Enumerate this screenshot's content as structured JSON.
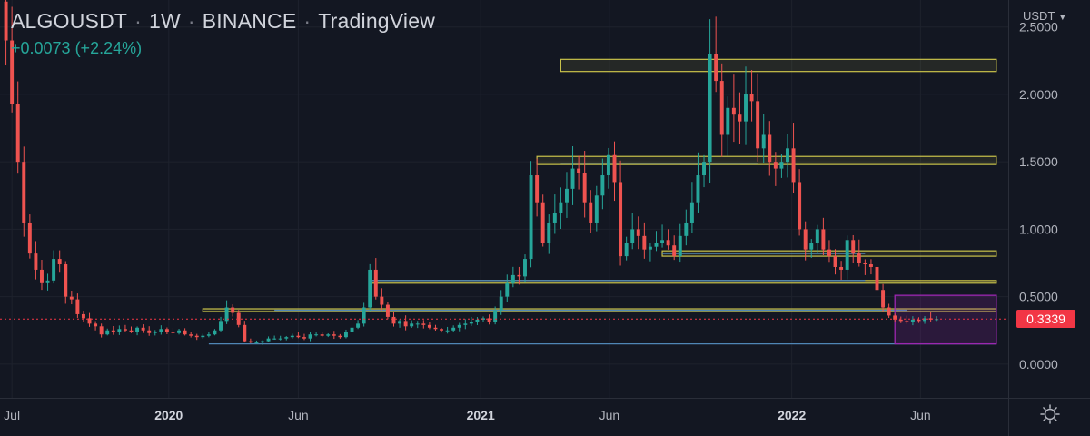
{
  "header": {
    "symbol": "ALGOUSDT",
    "interval": "1W",
    "exchange": "BINANCE",
    "source": "TradingView",
    "separator": "·",
    "change": "+0.0073 (+2.24%)"
  },
  "currency_selector": {
    "label": "USDT",
    "icon": "chevron-down-icon"
  },
  "last_price": {
    "label": "0.3339",
    "value": 0.3339,
    "color": "#f23645"
  },
  "settings": {
    "icon": "gear-icon"
  },
  "colors": {
    "background": "#131722",
    "grid": "#1e222d",
    "up": "#26a69a",
    "down": "#ef5350",
    "axis_text": "#b2b5be",
    "resistance_zone": "#c9c24a",
    "support_line": "#4f86b5",
    "range_box": "#9c27b0"
  },
  "chart_data": {
    "type": "candlestick",
    "title": "ALGOUSDT · 1W · BINANCE",
    "x_ticks": [
      {
        "label": "Jul",
        "date": "2019-07-01",
        "bold": false
      },
      {
        "label": "2020",
        "date": "2020-01-01",
        "bold": true
      },
      {
        "label": "Jun",
        "date": "2020-06-01",
        "bold": false
      },
      {
        "label": "2021",
        "date": "2021-01-01",
        "bold": true
      },
      {
        "label": "Jun",
        "date": "2021-06-01",
        "bold": false
      },
      {
        "label": "2022",
        "date": "2022-01-01",
        "bold": true
      },
      {
        "label": "Jun",
        "date": "2022-06-01",
        "bold": false
      }
    ],
    "y_ticks": [
      "0.0000",
      "0.5000",
      "1.0000",
      "1.5000",
      "2.0000",
      "2.5000"
    ],
    "ylim": [
      -0.25,
      2.7
    ],
    "x_range": [
      "2019-06-17",
      "2022-09-12"
    ],
    "grid": true,
    "last_price": 0.3339,
    "first_candle": "2019-06-24",
    "weekly_closes": [
      2.4,
      1.93,
      1.5,
      1.05,
      0.82,
      0.7,
      0.6,
      0.62,
      0.78,
      0.74,
      0.5,
      0.48,
      0.37,
      0.34,
      0.3,
      0.28,
      0.22,
      0.25,
      0.24,
      0.26,
      0.25,
      0.24,
      0.27,
      0.25,
      0.23,
      0.24,
      0.26,
      0.24,
      0.23,
      0.25,
      0.22,
      0.21,
      0.2,
      0.21,
      0.22,
      0.25,
      0.32,
      0.42,
      0.38,
      0.29,
      0.17,
      0.16,
      0.16,
      0.17,
      0.19,
      0.19,
      0.19,
      0.2,
      0.21,
      0.2,
      0.19,
      0.22,
      0.22,
      0.21,
      0.22,
      0.21,
      0.2,
      0.24,
      0.27,
      0.3,
      0.42,
      0.7,
      0.5,
      0.44,
      0.35,
      0.3,
      0.32,
      0.28,
      0.3,
      0.3,
      0.29,
      0.27,
      0.26,
      0.25,
      0.25,
      0.27,
      0.29,
      0.3,
      0.31,
      0.33,
      0.34,
      0.31,
      0.4,
      0.5,
      0.6,
      0.66,
      0.65,
      0.78,
      1.4,
      1.2,
      0.9,
      1.05,
      1.12,
      1.2,
      1.3,
      1.45,
      1.42,
      1.2,
      1.05,
      1.25,
      1.4,
      1.55,
      1.35,
      0.8,
      0.9,
      1.0,
      0.95,
      0.85,
      0.87,
      0.9,
      0.92,
      0.88,
      0.8,
      0.95,
      1.05,
      1.2,
      1.4,
      1.5,
      2.3,
      2.1,
      1.7,
      1.9,
      1.85,
      1.8,
      2.0,
      1.95,
      1.6,
      1.7,
      1.5,
      1.45,
      1.5,
      1.6,
      1.35,
      1.0,
      0.85,
      0.9,
      1.0,
      0.85,
      0.8,
      0.72,
      0.7,
      0.92,
      0.82,
      0.75,
      0.74,
      0.72,
      0.55,
      0.42,
      0.36,
      0.33,
      0.32,
      0.31,
      0.33,
      0.32,
      0.34,
      0.33,
      0.3339
    ],
    "resistance_zones": [
      {
        "from": "2021-04-05",
        "to": "2022-08-29",
        "low": 2.17,
        "high": 2.26
      },
      {
        "from": "2021-03-08",
        "to": "2022-08-29",
        "low": 1.48,
        "high": 1.54
      },
      {
        "from": "2021-08-02",
        "to": "2022-08-29",
        "low": 0.8,
        "high": 0.84
      },
      {
        "from": "2020-08-24",
        "to": "2022-08-29",
        "low": 0.6,
        "high": 0.62
      },
      {
        "from": "2020-02-10",
        "to": "2022-08-29",
        "low": 0.39,
        "high": 0.41
      }
    ],
    "support_lines": [
      {
        "from": "2021-04-05",
        "to": "2021-11-22",
        "value": 1.49
      },
      {
        "from": "2021-08-02",
        "to": "2022-03-28",
        "value": 0.82
      },
      {
        "from": "2020-08-24",
        "to": "2022-03-28",
        "value": 0.62
      },
      {
        "from": "2020-05-04",
        "to": "2022-05-16",
        "value": 0.4
      },
      {
        "from": "2020-02-17",
        "to": "2022-08-29",
        "value": 0.15
      }
    ],
    "range_box": {
      "from": "2022-05-02",
      "to": "2022-08-29",
      "low": 0.15,
      "high": 0.51
    }
  }
}
